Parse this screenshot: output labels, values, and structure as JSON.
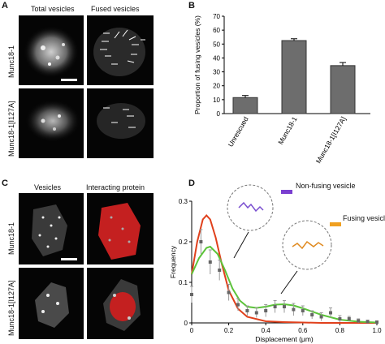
{
  "panels": {
    "A": {
      "letter": "A",
      "col1": "Total vesicles",
      "col2": "Fused vesicles",
      "row1": "Munc18-1",
      "row2": "Munc18-1[I127A]"
    },
    "B": {
      "letter": "B"
    },
    "C": {
      "letter": "C",
      "col1": "Vesicles",
      "col2": "Interacting protein",
      "row1": "Munc18-1",
      "row2": "Munc18-1[I127A]"
    },
    "D": {
      "letter": "D",
      "legend_nonfusing": "Non-fusing vesicle",
      "legend_fusing": "Fusing vesicle"
    }
  },
  "colors": {
    "bar": "#6d6d6d",
    "red_curve": "#e0401c",
    "green_curve": "#5cc43a",
    "points": "#666666",
    "protein_red": "#c42020"
  },
  "chart_data": [
    {
      "type": "bar",
      "categories": [
        "Unrescued",
        "Munc18-1",
        "Munc18-1[I127A]"
      ],
      "values": [
        11.5,
        52.5,
        34.5
      ],
      "errors": [
        1.5,
        1.3,
        2.2
      ],
      "ylabel": "Proportion of fusing vesicles (%)",
      "ylim": [
        0,
        70
      ],
      "yticks": [
        "0",
        "10",
        "20",
        "30",
        "40",
        "50",
        "60",
        "70"
      ]
    },
    {
      "type": "line",
      "xlabel": "Displacement (μm)",
      "ylabel": "Frequency",
      "xlim": [
        0,
        1.0
      ],
      "ylim": [
        0,
        0.3
      ],
      "xticks": [
        "0",
        "0.2",
        "0.4",
        "0.6",
        "0.8",
        "1.0"
      ],
      "yticks": [
        "0",
        "0.1",
        "0.2",
        "0.3"
      ],
      "series": [
        {
          "color": "red",
          "x": [
            0,
            0.03,
            0.06,
            0.08,
            0.1,
            0.13,
            0.16,
            0.2,
            0.25,
            0.3,
            0.4,
            0.5,
            0.6,
            0.7,
            0.8,
            0.9,
            1.0
          ],
          "y": [
            0.12,
            0.2,
            0.255,
            0.265,
            0.255,
            0.21,
            0.15,
            0.08,
            0.035,
            0.015,
            0.004,
            0.002,
            0.001,
            0,
            0,
            0,
            0
          ]
        },
        {
          "color": "green",
          "x": [
            0,
            0.04,
            0.08,
            0.1,
            0.14,
            0.18,
            0.22,
            0.26,
            0.3,
            0.35,
            0.4,
            0.45,
            0.5,
            0.55,
            0.6,
            0.7,
            0.8,
            0.9,
            1.0
          ],
          "y": [
            0.12,
            0.16,
            0.185,
            0.188,
            0.17,
            0.13,
            0.085,
            0.055,
            0.04,
            0.037,
            0.04,
            0.045,
            0.046,
            0.043,
            0.036,
            0.02,
            0.008,
            0.003,
            0.001
          ]
        },
        {
          "color": "points",
          "x": [
            0,
            0.05,
            0.1,
            0.15,
            0.2,
            0.25,
            0.3,
            0.35,
            0.4,
            0.45,
            0.5,
            0.55,
            0.6,
            0.65,
            0.7,
            0.75,
            0.8,
            0.85,
            0.9,
            0.95,
            1.0
          ],
          "y": [
            0.07,
            0.2,
            0.15,
            0.13,
            0.075,
            0.045,
            0.03,
            0.025,
            0.03,
            0.04,
            0.04,
            0.033,
            0.03,
            0.02,
            0.015,
            0.025,
            0.01,
            0.01,
            0.005,
            0.003,
            0.002
          ],
          "err": [
            0.02,
            0.03,
            0.03,
            0.025,
            0.02,
            0.015,
            0.012,
            0.012,
            0.015,
            0.015,
            0.015,
            0.015,
            0.012,
            0.01,
            0.01,
            0.012,
            0.008,
            0.006,
            0.005,
            0.004,
            0.003
          ]
        }
      ]
    }
  ]
}
